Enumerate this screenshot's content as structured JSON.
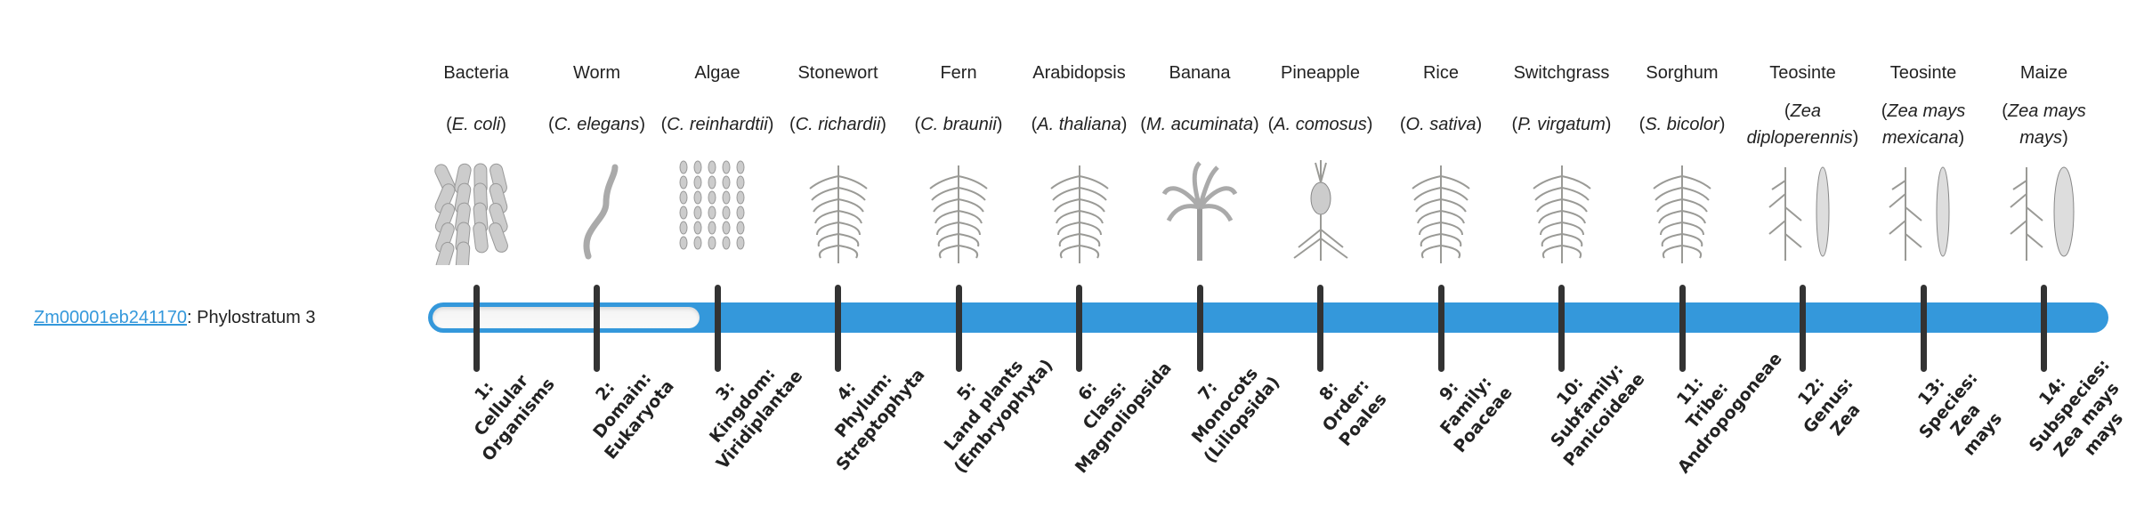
{
  "gene": {
    "id": "Zm00001eb241170",
    "suffix": ": Phylostratum 3"
  },
  "progress": {
    "phylostratum": 3,
    "total": 14
  },
  "colors": {
    "accent": "#3498db",
    "tick": "#333333",
    "empty": "#f5f5f5"
  },
  "organisms": [
    {
      "name": "Bacteria",
      "genus": "E. coli",
      "icon": "bacteria-illustration"
    },
    {
      "name": "Worm",
      "genus": "C. elegans",
      "icon": "worm-illustration"
    },
    {
      "name": "Algae",
      "genus": "C. reinhardtii",
      "icon": "algae-illustration"
    },
    {
      "name": "Stonewort",
      "genus": "C. richardii",
      "icon": "stonewort-illustration"
    },
    {
      "name": "Fern",
      "genus": "C. braunii",
      "icon": "fern-illustration"
    },
    {
      "name": "Arabidopsis",
      "genus": "A. thaliana",
      "icon": "arabidopsis-illustration"
    },
    {
      "name": "Banana",
      "genus": "M. acuminata",
      "icon": "banana-illustration"
    },
    {
      "name": "Pineapple",
      "genus": "A. comosus",
      "icon": "pineapple-illustration"
    },
    {
      "name": "Rice",
      "genus": "O. sativa",
      "icon": "rice-illustration"
    },
    {
      "name": "Switchgrass",
      "genus": "P. virgatum",
      "icon": "switchgrass-illustration"
    },
    {
      "name": "Sorghum",
      "genus": "S. bicolor",
      "icon": "sorghum-illustration"
    },
    {
      "name": "Teosinte",
      "genus": "Zea diploperennis",
      "icon": "teosinte-illustration"
    },
    {
      "name": "Teosinte",
      "genus": "Zea mays mexicana",
      "icon": "teosinte-illustration"
    },
    {
      "name": "Maize",
      "genus": "Zea mays mays",
      "icon": "maize-illustration"
    }
  ],
  "ranks": [
    [
      "1:",
      "Cellular",
      "Organisms"
    ],
    [
      "2:",
      "Domain:",
      "Eukaryota"
    ],
    [
      "3:",
      "Kingdom:",
      "Viridiplantae"
    ],
    [
      "4:",
      "Phylum:",
      "Streptophyta"
    ],
    [
      "5:",
      "Land plants",
      "(Embryophyta)"
    ],
    [
      "6:",
      "Class:",
      "Magnoliopsida"
    ],
    [
      "7:",
      "Monocots",
      "(Liliopsida)"
    ],
    [
      "8:",
      "Order:",
      "Poales"
    ],
    [
      "9:",
      "Family:",
      "Poaceae"
    ],
    [
      "10:",
      "Subfamily:",
      "Panicoideae"
    ],
    [
      "11:",
      "Tribe:",
      "Andropogoneae"
    ],
    [
      "12:",
      "Genus:",
      "Zea"
    ],
    [
      "13:",
      "Species:",
      "Zea",
      "mays"
    ],
    [
      "14:",
      "Subspecies:",
      "Zea mays",
      "mays"
    ]
  ]
}
